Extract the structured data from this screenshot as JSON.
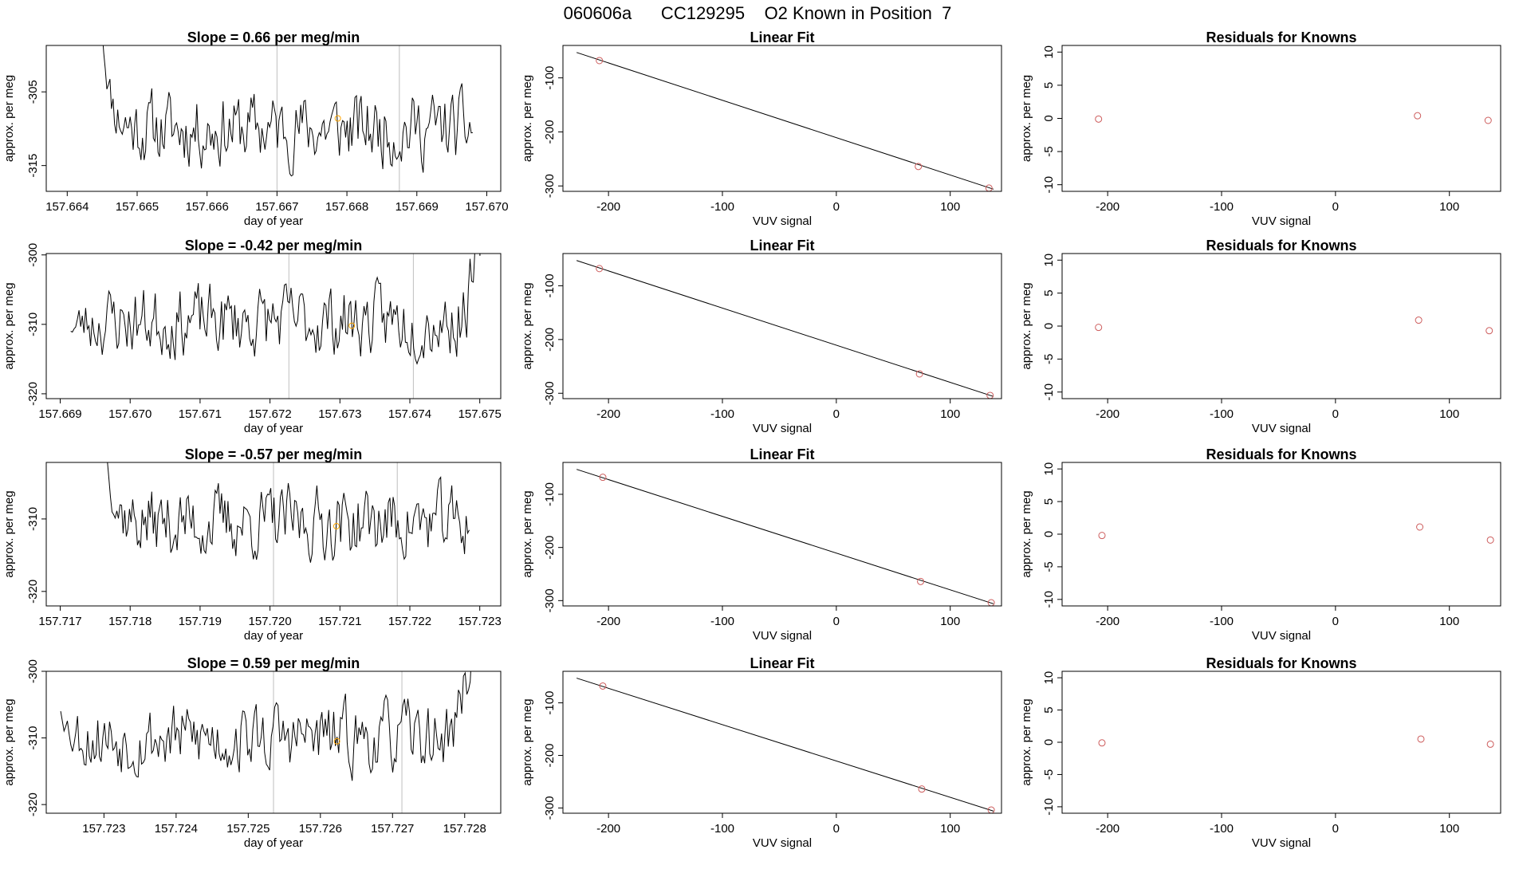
{
  "figure": {
    "title": "060606a      CC129295    O2 Known in Position  7"
  },
  "colors": {
    "trace": "#000000",
    "gridline": "#bebebe",
    "orange_point": "#ffa500",
    "known_point": "#cd5c5c"
  },
  "chart_data": [
    {
      "type": "line",
      "panel": "time-series",
      "row": 1,
      "title": "Slope =  0.66  per meg/min",
      "xlabel": "day of year",
      "ylabel": "approx. per meg",
      "xlim": [
        157.6637,
        157.6702
      ],
      "ylim": [
        -318.5,
        -298.7
      ],
      "xticks": [
        "157.664",
        "157.665",
        "157.666",
        "157.667",
        "157.668",
        "157.669",
        "157.670"
      ],
      "xtick_values": [
        157.664,
        157.665,
        157.666,
        157.667,
        157.668,
        157.669,
        157.67
      ],
      "yticks": [
        "-305",
        "-315"
      ],
      "ytick_values": [
        -305,
        -315
      ],
      "vlines": [
        157.667,
        157.66875
      ],
      "x_start": 157.6645,
      "x_end": 157.6698,
      "start_level": -297.0,
      "mean": -310.0,
      "amplitude": 2.6,
      "n_points": 240,
      "noise_seed": 11,
      "end_rise": false,
      "highlight": {
        "x": 157.66787,
        "y": -308.6
      }
    },
    {
      "type": "scatter",
      "panel": "linear-fit",
      "row": 1,
      "title": "Linear Fit",
      "xlabel": "VUV signal",
      "ylabel": "approx. per meg",
      "xlim": [
        -240,
        145
      ],
      "ylim": [
        -310,
        -40
      ],
      "xticks": [
        "-200",
        "-100",
        "0",
        "100"
      ],
      "xtick_values": [
        -200,
        -100,
        0,
        100
      ],
      "yticks": [
        "-100",
        "-200",
        "-300"
      ],
      "ytick_values": [
        -100,
        -200,
        -300
      ],
      "points": [
        {
          "x": -208,
          "y": -68
        },
        {
          "x": 72,
          "y": -264
        },
        {
          "x": 134,
          "y": -304
        }
      ],
      "fit_line": {
        "x0": -228,
        "y0": -53,
        "x1": 138,
        "y1": -306
      }
    },
    {
      "type": "scatter",
      "panel": "residuals",
      "row": 1,
      "title": "Residuals for Knowns",
      "xlabel": "VUV signal",
      "ylabel": "approx. per meg",
      "xlim": [
        -240,
        145
      ],
      "ylim": [
        -11,
        11
      ],
      "xticks": [
        "-200",
        "-100",
        "0",
        "100"
      ],
      "xtick_values": [
        -200,
        -100,
        0,
        100
      ],
      "yticks": [
        "10",
        "5",
        "0",
        "-5",
        "-10"
      ],
      "ytick_values": [
        10,
        5,
        0,
        -5,
        -10
      ],
      "points": [
        {
          "x": -208,
          "y": -0.1
        },
        {
          "x": 72,
          "y": 0.4
        },
        {
          "x": 134,
          "y": -0.3
        }
      ]
    },
    {
      "type": "line",
      "panel": "time-series",
      "row": 2,
      "title": "Slope =  -0.42  per meg/min",
      "xlabel": "day of year",
      "ylabel": "approx. per meg",
      "xlim": [
        157.6688,
        157.6753
      ],
      "ylim": [
        -320.7,
        -299.8
      ],
      "xticks": [
        "157.669",
        "157.670",
        "157.671",
        "157.672",
        "157.673",
        "157.674",
        "157.675"
      ],
      "xtick_values": [
        157.669,
        157.67,
        157.671,
        157.672,
        157.673,
        157.674,
        157.675
      ],
      "yticks": [
        "-300",
        "-310",
        "-320"
      ],
      "ytick_values": [
        -300,
        -310,
        -320
      ],
      "vlines": [
        157.67227,
        157.67405
      ],
      "x_start": 157.66915,
      "x_end": 157.67505,
      "start_level": -311.0,
      "mean": -309.5,
      "amplitude": 2.7,
      "n_points": 250,
      "noise_seed": 23,
      "end_rise": true,
      "highlight": {
        "x": 157.67317,
        "y": -310.2
      }
    },
    {
      "type": "scatter",
      "panel": "linear-fit",
      "row": 2,
      "title": "Linear Fit",
      "xlabel": "VUV signal",
      "ylabel": "approx. per meg",
      "xlim": [
        -240,
        145
      ],
      "ylim": [
        -310,
        -40
      ],
      "xticks": [
        "-200",
        "-100",
        "0",
        "100"
      ],
      "xtick_values": [
        -200,
        -100,
        0,
        100
      ],
      "yticks": [
        "-100",
        "-200",
        "-300"
      ],
      "ytick_values": [
        -100,
        -200,
        -300
      ],
      "points": [
        {
          "x": -208,
          "y": -68
        },
        {
          "x": 73,
          "y": -264
        },
        {
          "x": 135,
          "y": -304
        }
      ],
      "fit_line": {
        "x0": -228,
        "y0": -53,
        "x1": 138,
        "y1": -306
      }
    },
    {
      "type": "scatter",
      "panel": "residuals",
      "row": 2,
      "title": "Residuals for Knowns",
      "xlabel": "VUV signal",
      "ylabel": "approx. per meg",
      "xlim": [
        -240,
        145
      ],
      "ylim": [
        -11,
        11
      ],
      "xticks": [
        "-200",
        "-100",
        "0",
        "100"
      ],
      "xtick_values": [
        -200,
        -100,
        0,
        100
      ],
      "yticks": [
        "10",
        "5",
        "0",
        "-5",
        "-10"
      ],
      "ytick_values": [
        10,
        5,
        0,
        -5,
        -10
      ],
      "points": [
        {
          "x": -208,
          "y": -0.2
        },
        {
          "x": 73,
          "y": 0.9
        },
        {
          "x": 135,
          "y": -0.7
        }
      ]
    },
    {
      "type": "line",
      "panel": "time-series",
      "row": 3,
      "title": "Slope =  -0.57  per meg/min",
      "xlabel": "day of year",
      "ylabel": "approx. per meg",
      "xlim": [
        157.7168,
        157.7233
      ],
      "ylim": [
        -322,
        -302.2
      ],
      "xticks": [
        "157.717",
        "157.718",
        "157.719",
        "157.720",
        "157.721",
        "157.722",
        "157.723"
      ],
      "xtick_values": [
        157.717,
        157.718,
        157.719,
        157.72,
        157.721,
        157.722,
        157.723
      ],
      "yticks": [
        "-310",
        "-320"
      ],
      "ytick_values": [
        -310,
        -320
      ],
      "vlines": [
        157.72005,
        157.72182
      ],
      "x_start": 157.71765,
      "x_end": 157.72285,
      "start_level": -300.0,
      "mean": -310.5,
      "amplitude": 2.6,
      "n_points": 230,
      "noise_seed": 37,
      "end_rise": false,
      "highlight": {
        "x": 157.72095,
        "y": -311.0
      }
    },
    {
      "type": "scatter",
      "panel": "linear-fit",
      "row": 3,
      "title": "Linear Fit",
      "xlabel": "VUV signal",
      "ylabel": "approx. per meg",
      "xlim": [
        -240,
        145
      ],
      "ylim": [
        -310,
        -40
      ],
      "xticks": [
        "-200",
        "-100",
        "0",
        "100"
      ],
      "xtick_values": [
        -200,
        -100,
        0,
        100
      ],
      "yticks": [
        "-100",
        "-200",
        "-300"
      ],
      "ytick_values": [
        -100,
        -200,
        -300
      ],
      "points": [
        {
          "x": -205,
          "y": -68
        },
        {
          "x": 74,
          "y": -264
        },
        {
          "x": 136,
          "y": -304
        }
      ],
      "fit_line": {
        "x0": -228,
        "y0": -53,
        "x1": 138,
        "y1": -306
      }
    },
    {
      "type": "scatter",
      "panel": "residuals",
      "row": 3,
      "title": "Residuals for Knowns",
      "xlabel": "VUV signal",
      "ylabel": "approx. per meg",
      "xlim": [
        -240,
        145
      ],
      "ylim": [
        -11,
        11
      ],
      "xticks": [
        "-200",
        "-100",
        "0",
        "100"
      ],
      "xtick_values": [
        -200,
        -100,
        0,
        100
      ],
      "yticks": [
        "10",
        "5",
        "0",
        "-5",
        "-10"
      ],
      "ytick_values": [
        10,
        5,
        0,
        -5,
        -10
      ],
      "points": [
        {
          "x": -205,
          "y": -0.2
        },
        {
          "x": 74,
          "y": 1.1
        },
        {
          "x": 136,
          "y": -0.9
        }
      ]
    },
    {
      "type": "line",
      "panel": "time-series",
      "row": 4,
      "title": "Slope =  0.59  per meg/min",
      "xlabel": "day of year",
      "ylabel": "approx. per meg",
      "xlim": [
        157.7222,
        157.7285
      ],
      "ylim": [
        -321.3,
        -300
      ],
      "xticks": [
        "157.723",
        "157.724",
        "157.725",
        "157.726",
        "157.727",
        "157.728"
      ],
      "xtick_values": [
        157.723,
        157.724,
        157.725,
        157.726,
        157.727,
        157.728
      ],
      "yticks": [
        "-300",
        "-310",
        "-320"
      ],
      "ytick_values": [
        -300,
        -310,
        -320
      ],
      "vlines": [
        157.72535,
        157.72713
      ],
      "x_start": 157.7224,
      "x_end": 157.7281,
      "start_level": -306.0,
      "mean": -310.0,
      "amplitude": 2.8,
      "n_points": 245,
      "noise_seed": 53,
      "end_rise": true,
      "highlight": {
        "x": 157.72623,
        "y": -310.5
      }
    },
    {
      "type": "scatter",
      "panel": "linear-fit",
      "row": 4,
      "title": "Linear Fit",
      "xlabel": "VUV signal",
      "ylabel": "approx. per meg",
      "xlim": [
        -240,
        145
      ],
      "ylim": [
        -310,
        -40
      ],
      "xticks": [
        "-200",
        "-100",
        "0",
        "100"
      ],
      "xtick_values": [
        -200,
        -100,
        0,
        100
      ],
      "yticks": [
        "-100",
        "-200",
        "-300"
      ],
      "ytick_values": [
        -100,
        -200,
        -300
      ],
      "points": [
        {
          "x": -205,
          "y": -68
        },
        {
          "x": 75,
          "y": -264
        },
        {
          "x": 136,
          "y": -304
        }
      ],
      "fit_line": {
        "x0": -228,
        "y0": -53,
        "x1": 138,
        "y1": -306
      }
    },
    {
      "type": "scatter",
      "panel": "residuals",
      "row": 4,
      "title": "Residuals for Knowns",
      "xlabel": "VUV signal",
      "ylabel": "approx. per meg",
      "xlim": [
        -240,
        145
      ],
      "ylim": [
        -11,
        11
      ],
      "xticks": [
        "-200",
        "-100",
        "0",
        "100"
      ],
      "xtick_values": [
        -200,
        -100,
        0,
        100
      ],
      "yticks": [
        "10",
        "5",
        "0",
        "-5",
        "-10"
      ],
      "ytick_values": [
        10,
        5,
        0,
        -5,
        -10
      ],
      "points": [
        {
          "x": -205,
          "y": -0.1
        },
        {
          "x": 75,
          "y": 0.5
        },
        {
          "x": 136,
          "y": -0.3
        }
      ]
    }
  ]
}
